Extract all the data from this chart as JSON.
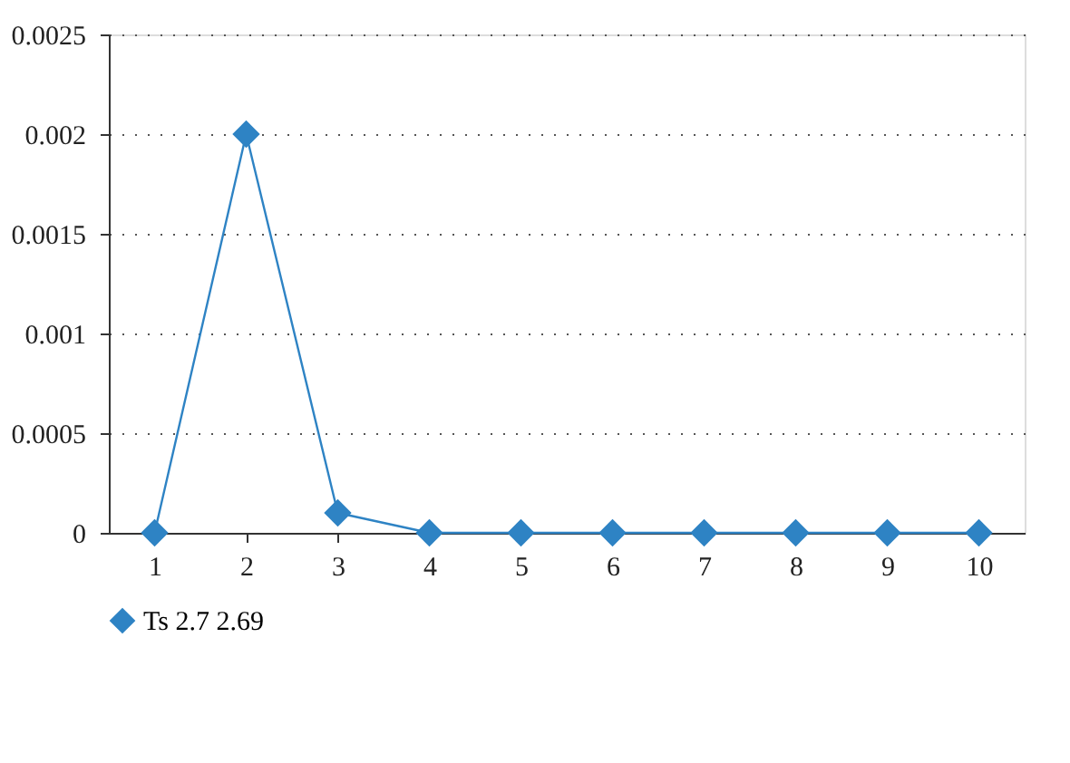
{
  "chart_data": {
    "type": "line",
    "categories": [
      "1",
      "2",
      "3",
      "4",
      "5",
      "6",
      "7",
      "8",
      "9",
      "10"
    ],
    "series": [
      {
        "name": "Ts 2.7 2.69",
        "color": "#2e83c4",
        "values": [
          0,
          0.002,
          0.0001,
          0,
          0,
          0,
          0,
          0,
          0,
          0
        ]
      }
    ],
    "ylim": [
      0,
      0.0025
    ],
    "yticks": [
      0,
      0.0005,
      0.001,
      0.0015,
      0.002,
      0.0025
    ],
    "grid": "y",
    "legend": "bottom left",
    "marker": "diamond",
    "line_style": "solid"
  }
}
